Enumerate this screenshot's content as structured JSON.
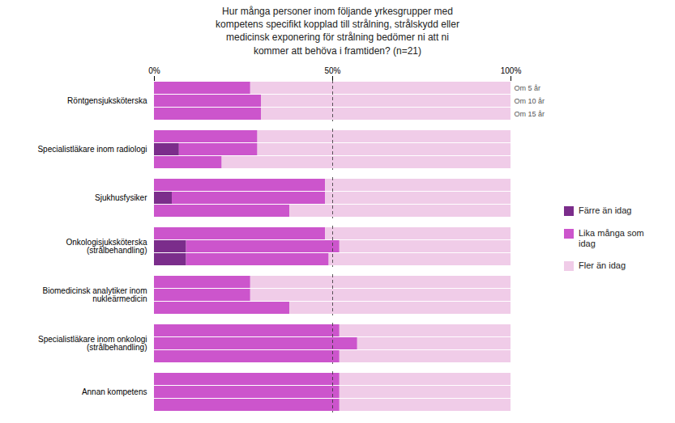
{
  "chart_data": {
    "type": "bar",
    "orientation": "horizontal",
    "stacked": true,
    "title": "Hur många personer inom följande yrkesgrupper med\nkompetens specifikt kopplad till strålning, strålskydd eller\nmedicinsk exponering för strålning bedömer ni att ni\nkommer att behöva i framtiden? (n=21)",
    "categories": [
      "Röntgensjuksköterska",
      "Specialistläkare inom radiologi",
      "Sjukhusfysiker",
      "Onkologisjuksköterska\n(strålbehandling)",
      "Biomedicinsk analytiker inom\nnukleärmedicin",
      "Specialistläkare inom onkologi\n(strålbehandling)",
      "Annan kompetens"
    ],
    "groups": [
      "Om 5 år",
      "Om 10 år",
      "Om 15 år"
    ],
    "series": [
      {
        "name": "Färre än idag",
        "color": "#7B2D8B",
        "values": [
          [
            0,
            0,
            0
          ],
          [
            0,
            7,
            0
          ],
          [
            0,
            5,
            0
          ],
          [
            0,
            9,
            9
          ],
          [
            0,
            0,
            0
          ],
          [
            0,
            0,
            0
          ],
          [
            0,
            0,
            0
          ]
        ]
      },
      {
        "name": "Lika många som\nidag",
        "color": "#CC55CC",
        "values": [
          [
            27,
            30,
            30
          ],
          [
            29,
            22,
            19
          ],
          [
            48,
            43,
            38
          ],
          [
            48,
            43,
            40
          ],
          [
            27,
            27,
            38
          ],
          [
            52,
            57,
            52
          ],
          [
            52,
            52,
            52
          ]
        ]
      },
      {
        "name": "Fler än idag",
        "color": "#F0CCE8",
        "values": [
          [
            73,
            70,
            70
          ],
          [
            71,
            71,
            81
          ],
          [
            52,
            52,
            62
          ],
          [
            52,
            48,
            51
          ],
          [
            73,
            73,
            62
          ],
          [
            48,
            43,
            48
          ],
          [
            48,
            48,
            48
          ]
        ]
      }
    ],
    "xlim": [
      0,
      100
    ],
    "xticks": [
      {
        "value": 0,
        "label": "0%"
      },
      {
        "value": 50,
        "label": "50%"
      },
      {
        "value": 100,
        "label": "100%"
      }
    ],
    "vlines": [
      50
    ],
    "legend": "right",
    "grid": false
  }
}
